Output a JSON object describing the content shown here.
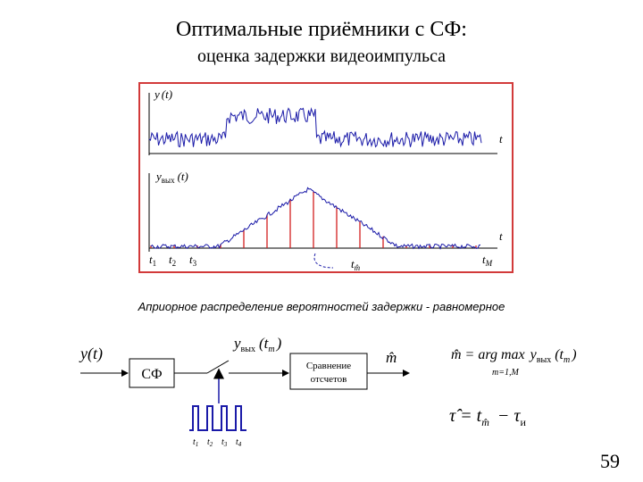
{
  "slide": {
    "title": "Оптимальные приёмники с СФ:",
    "subtitle": "оценка задержки видеоимпульса",
    "prior_note": "Априорное распределение вероятностей задержки - равномерное",
    "page_number": "59"
  },
  "plot": {
    "top_label_y": "y",
    "top_label_arg": "(t)",
    "top_axis": "t",
    "bottom_label_y": "y",
    "bottom_label_sub": "вых",
    "bottom_label_arg": "(t)",
    "bottom_axis": "t",
    "t1": "t",
    "t1_sub": "1",
    "t2": "t",
    "t2_sub": "2",
    "t3": "t",
    "t3_sub": "3",
    "tm": "t",
    "tm_sub": "m̂",
    "tM": "t",
    "tM_sub": "M"
  },
  "block": {
    "input": "y(t)",
    "filter": "СФ",
    "compare_line1": "Сравнение",
    "compare_line2": "отсчетов",
    "sample_y": "y",
    "sample_sub": "вых",
    "sample_arg": "(t",
    "sample_arg_sub": "m",
    "sample_close": ")",
    "output": "m̂",
    "pulse_t1": "t",
    "pulse_t1_sub": "1",
    "pulse_t2": "t",
    "pulse_t2_sub": "2",
    "pulse_t3": "t",
    "pulse_t3_sub": "3",
    "pulse_t4": "t",
    "pulse_t4_sub": "4"
  },
  "formulas": {
    "f1_lhs": "m̂ = arg max",
    "f1_under": "m=1,M",
    "f1_y": "y",
    "f1_sub": "вых",
    "f1_arg": "(t",
    "f1_arg_sub": "m",
    "f1_close": ")",
    "f2_lhs": "τ̂ = t",
    "f2_sub": "m̂",
    "f2_mid": " − τ",
    "f2_tau_sub": "и"
  }
}
